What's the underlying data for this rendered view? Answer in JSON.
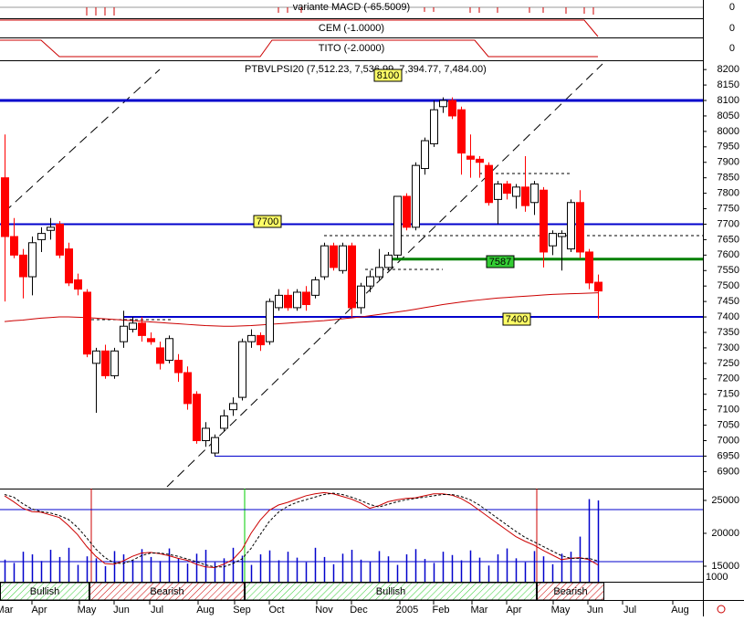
{
  "panels": [
    {
      "title": "variante MACD (-65.5009)",
      "value": 0
    },
    {
      "title": "CEM (-1.0000)",
      "value": 0
    },
    {
      "title": "TITO (-2.0000)",
      "value": 0
    }
  ],
  "chart_data": {
    "type": "candlestick",
    "title": "PTBVLPSI20 (7,512.23, 7,536.99, 7,394.77, 7,484.00)",
    "candles": [
      [
        7850,
        7990,
        7450,
        7660
      ],
      [
        7660,
        7720,
        7590,
        7600
      ],
      [
        7600,
        7620,
        7460,
        7530
      ],
      [
        7530,
        7660,
        7470,
        7640
      ],
      [
        7650,
        7690,
        7610,
        7670
      ],
      [
        7680,
        7720,
        7650,
        7690
      ],
      [
        7700,
        7710,
        7590,
        7600
      ],
      [
        7620,
        7640,
        7500,
        7510
      ],
      [
        7520,
        7540,
        7470,
        7490
      ],
      [
        7480,
        7490,
        7270,
        7280
      ],
      [
        7250,
        7300,
        7090,
        7290
      ],
      [
        7290,
        7310,
        7200,
        7210
      ],
      [
        7210,
        7300,
        7200,
        7290
      ],
      [
        7320,
        7420,
        7300,
        7370
      ],
      [
        7360,
        7400,
        7350,
        7380
      ],
      [
        7380,
        7400,
        7320,
        7340
      ],
      [
        7330,
        7350,
        7310,
        7320
      ],
      [
        7300,
        7320,
        7230,
        7250
      ],
      [
        7260,
        7340,
        7250,
        7330
      ],
      [
        7260,
        7280,
        7190,
        7220
      ],
      [
        7220,
        7240,
        7100,
        7120
      ],
      [
        7150,
        7160,
        6990,
        7000
      ],
      [
        7000,
        7060,
        6980,
        7040
      ],
      [
        6960,
        7020,
        6950,
        7010
      ],
      [
        7040,
        7100,
        7030,
        7080
      ],
      [
        7100,
        7140,
        7080,
        7120
      ],
      [
        7140,
        7330,
        7130,
        7320
      ],
      [
        7320,
        7360,
        7300,
        7340
      ],
      [
        7340,
        7350,
        7290,
        7310
      ],
      [
        7320,
        7460,
        7310,
        7450
      ],
      [
        7430,
        7490,
        7420,
        7470
      ],
      [
        7470,
        7490,
        7420,
        7430
      ],
      [
        7430,
        7490,
        7420,
        7480
      ],
      [
        7480,
        7500,
        7420,
        7440
      ],
      [
        7470,
        7530,
        7460,
        7520
      ],
      [
        7530,
        7640,
        7520,
        7630
      ],
      [
        7630,
        7640,
        7550,
        7560
      ],
      [
        7550,
        7640,
        7540,
        7630
      ],
      [
        7630,
        7640,
        7400,
        7430
      ],
      [
        7430,
        7510,
        7410,
        7500
      ],
      [
        7500,
        7550,
        7480,
        7530
      ],
      [
        7530,
        7620,
        7520,
        7560
      ],
      [
        7560,
        7610,
        7550,
        7600
      ],
      [
        7600,
        7790,
        7590,
        7790
      ],
      [
        7790,
        7800,
        7680,
        7690
      ],
      [
        7690,
        7900,
        7680,
        7890
      ],
      [
        7880,
        7980,
        7860,
        7970
      ],
      [
        7960,
        8100,
        7950,
        8070
      ],
      [
        8080,
        8110,
        8060,
        8100
      ],
      [
        8100,
        8110,
        8040,
        8050
      ],
      [
        8070,
        8080,
        7860,
        7930
      ],
      [
        7920,
        7990,
        7850,
        7910
      ],
      [
        7910,
        7920,
        7850,
        7900
      ],
      [
        7890,
        7900,
        7760,
        7770
      ],
      [
        7780,
        7840,
        7700,
        7830
      ],
      [
        7830,
        7840,
        7780,
        7800
      ],
      [
        7790,
        7830,
        7750,
        7820
      ],
      [
        7820,
        7920,
        7740,
        7760
      ],
      [
        7770,
        7840,
        7730,
        7830
      ],
      [
        7810,
        7820,
        7560,
        7610
      ],
      [
        7630,
        7680,
        7600,
        7670
      ],
      [
        7660,
        7680,
        7550,
        7670
      ],
      [
        7620,
        7780,
        7610,
        7770
      ],
      [
        7770,
        7810,
        7590,
        7610
      ],
      [
        7610,
        7620,
        7490,
        7510
      ],
      [
        7512.23,
        7536.99,
        7394.77,
        7484
      ]
    ],
    "up_color": "#ffffff",
    "down_color": "#ff0000",
    "ylim": [
      6845,
      8230
    ],
    "yticks": [
      8200,
      8150,
      8100,
      8050,
      8000,
      7950,
      7900,
      7850,
      7800,
      7750,
      7700,
      7650,
      7600,
      7550,
      7500,
      7450,
      7400,
      7350,
      7300,
      7250,
      7200,
      7150,
      7100,
      7050,
      7000,
      6950,
      6900
    ],
    "moving_average": {
      "color": "#cc0000",
      "values": [
        7385,
        7388,
        7390,
        7393,
        7396,
        7398,
        7400,
        7400,
        7399,
        7398,
        7396,
        7394,
        7392,
        7390,
        7388,
        7386,
        7384,
        7382,
        7380,
        7378,
        7376,
        7374,
        7372,
        7371,
        7370,
        7370,
        7371,
        7372,
        7374,
        7376,
        7378,
        7380,
        7382,
        7384,
        7386,
        7388,
        7391,
        7394,
        7397,
        7400,
        7404,
        7408,
        7412,
        7416,
        7420,
        7425,
        7430,
        7435,
        7440,
        7444,
        7448,
        7452,
        7455,
        7458,
        7461,
        7463,
        7465,
        7467,
        7469,
        7471,
        7473,
        7474,
        7475,
        7476,
        7477,
        7478
      ]
    },
    "levels": [
      {
        "value": 8100,
        "color": "#0000cc"
      },
      {
        "value": 7700,
        "color": "#0000cc"
      },
      {
        "value": 7587,
        "color": "#008000"
      },
      {
        "value": 7400,
        "color": "#0000cc"
      },
      {
        "value": 6950,
        "color": "#0000cc"
      }
    ],
    "x_labels": [
      "Mar",
      "Apr",
      "May",
      "Jun",
      "Jul",
      "Aug",
      "Sep",
      "Oct",
      "Nov",
      "Dec",
      "2005",
      "Feb",
      "Mar",
      "Apr",
      "May",
      "Jun",
      "Jul",
      "Aug"
    ],
    "lower": {
      "ylim": [
        12640,
        26800
      ],
      "yticks": [
        25000,
        20000,
        15000
      ],
      "scale_label": "1000",
      "levels": [
        23600,
        15700
      ],
      "volume": {
        "color": "#0000cc",
        "values": [
          16000,
          15500,
          17200,
          16800,
          15800,
          17500,
          16400,
          17800,
          15200,
          16500,
          16200,
          15000,
          17300,
          16800,
          15900,
          17600,
          16400,
          15800,
          17700,
          16200,
          15400,
          16900,
          17500,
          15600,
          16200,
          17800,
          16600,
          15200,
          16800,
          17400,
          15900,
          17200,
          16300,
          15600,
          17800,
          16400,
          15300,
          16900,
          17500,
          16000,
          15700,
          17300,
          16500,
          15200,
          16800,
          17600,
          16100,
          15500,
          17200,
          16700,
          15900,
          17400,
          16300,
          15100,
          16800,
          17700,
          16200,
          15600,
          17300,
          16500,
          15300,
          16900,
          17200,
          19500,
          25200,
          25000
        ]
      },
      "osc_k": {
        "color": "#cc0000",
        "values": [
          25700,
          24800,
          23800,
          23300,
          23200,
          22800,
          22400,
          21200,
          19800,
          18000,
          16500,
          15400,
          15300,
          15800,
          16500,
          17000,
          17100,
          16900,
          16600,
          16200,
          15900,
          15300,
          14900,
          14800,
          15300,
          16000,
          17500,
          20000,
          22000,
          23500,
          24300,
          24700,
          25200,
          25700,
          26000,
          26200,
          26000,
          25600,
          25200,
          24600,
          23800,
          24200,
          24800,
          25100,
          25300,
          25400,
          25700,
          26000,
          26000,
          25800,
          25300,
          24500,
          23500,
          22500,
          21500,
          20500,
          19500,
          18800,
          18200,
          17400,
          16700,
          16000,
          16200,
          16300,
          16000,
          15200
        ]
      },
      "osc_d": {
        "color": "#000000",
        "values": [
          25900,
          25500,
          24500,
          23700,
          23300,
          23100,
          22700,
          22100,
          20900,
          19300,
          17600,
          16300,
          15500,
          15400,
          15900,
          16600,
          17000,
          17000,
          16800,
          16500,
          16100,
          15700,
          15200,
          14900,
          14900,
          15400,
          16100,
          17700,
          19800,
          21800,
          23200,
          24100,
          24700,
          25100,
          25500,
          25900,
          26100,
          25900,
          25500,
          25000,
          24400,
          24000,
          24400,
          24800,
          25100,
          25300,
          25500,
          25700,
          25900,
          25900,
          25600,
          25100,
          24300,
          23300,
          22300,
          21300,
          20300,
          19400,
          18700,
          18000,
          17300,
          16600,
          16200,
          16200,
          16200,
          15800
        ]
      }
    },
    "trend": [
      "Bullish",
      "Bearish",
      "Bullish",
      "Bearish"
    ]
  }
}
